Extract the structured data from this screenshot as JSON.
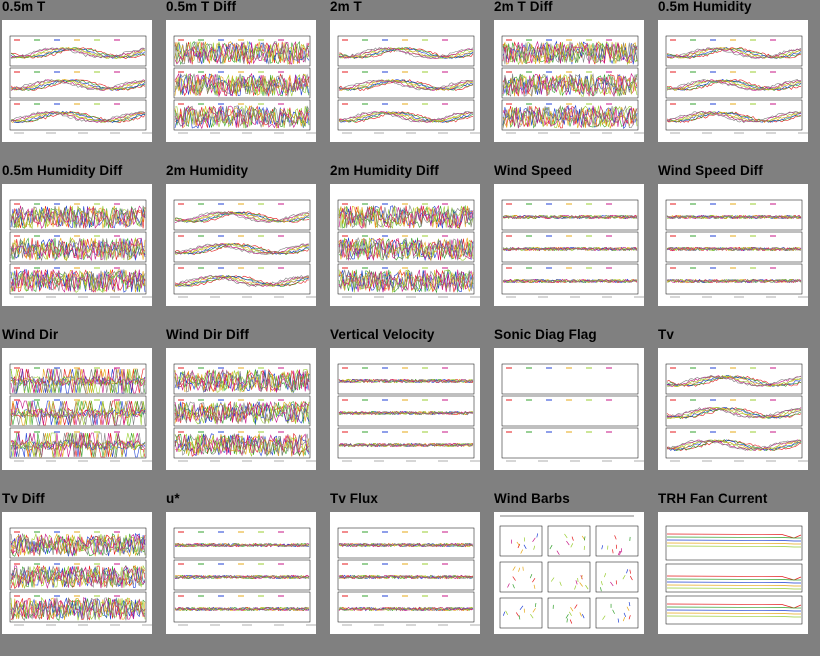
{
  "page": {
    "background": "#808080"
  },
  "panels": [
    {
      "title": "0.5m T",
      "kind": "smooth"
    },
    {
      "title": "0.5m T Diff",
      "kind": "noisy"
    },
    {
      "title": "2m T",
      "kind": "smooth"
    },
    {
      "title": "2m T Diff",
      "kind": "noisy"
    },
    {
      "title": "0.5m Humidity",
      "kind": "smooth"
    },
    {
      "title": "0.5m Humidity Diff",
      "kind": "noisy"
    },
    {
      "title": "2m Humidity",
      "kind": "smooth"
    },
    {
      "title": "2m Humidity Diff",
      "kind": "noisy"
    },
    {
      "title": "Wind Speed",
      "kind": "flat"
    },
    {
      "title": "Wind Speed Diff",
      "kind": "flat"
    },
    {
      "title": "Wind Dir",
      "kind": "spiky"
    },
    {
      "title": "Wind Dir Diff",
      "kind": "noisy"
    },
    {
      "title": "Vertical Velocity",
      "kind": "flat"
    },
    {
      "title": "Sonic Diag Flag",
      "kind": "empty"
    },
    {
      "title": "Tv",
      "kind": "smooth"
    },
    {
      "title": "Tv Diff",
      "kind": "noisy"
    },
    {
      "title": "u*",
      "kind": "flat"
    },
    {
      "title": "Tv Flux",
      "kind": "flat"
    },
    {
      "title": "Wind Barbs",
      "kind": "barbs"
    },
    {
      "title": "TRH Fan Current",
      "kind": "fan"
    }
  ],
  "series_colors": [
    "#e41a1c",
    "#33a02c",
    "#1f3fd4",
    "#e6a817",
    "#9acd32",
    "#c71585",
    "#808080"
  ]
}
